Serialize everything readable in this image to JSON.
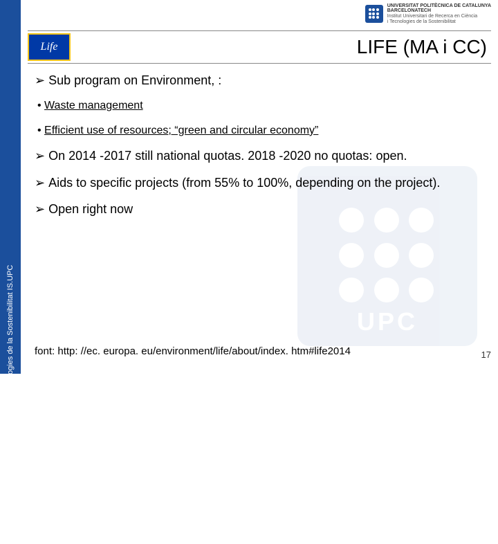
{
  "left_strip": {
    "text": "Institut Universitari de Recerca en Ciència i Tecnologies de la Sostenibilitat IS.UPC"
  },
  "header": {
    "line1": "UNIVERSITAT POLITÈCNICA DE CATALUNYA",
    "line2": "BARCELONATECH",
    "line3": "Institut Universitari de Recerca en Ciència",
    "line4": "i Tecnologies de la Sostenibilitat"
  },
  "title": {
    "flag_text": "Life",
    "text": "LIFE (MA i CC)"
  },
  "body": {
    "p1": "Sub program on Environment, :",
    "b1": "Waste management",
    "b2": "Efficient use of resources; “green and circular economy”",
    "p2": "On 2014 -2017 still national quotas. 2018 -2020 no quotas: open.",
    "p3": "Aids to specific projects (from 55% to 100%, depending on the project).",
    "p4": "Open right now"
  },
  "footer": {
    "source_label": "font:  http: //ec. europa. eu/environment/life/about/index. htm#life2014",
    "page_number": "17"
  },
  "colors": {
    "strip_blue": "#1b4f9c",
    "flag_blue": "#0039a6",
    "flag_gold": "#f5c518"
  }
}
